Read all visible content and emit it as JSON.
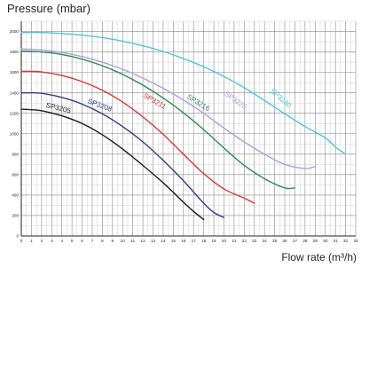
{
  "chart_data": {
    "type": "line",
    "ylabel": "Pressure (mbar)",
    "xlabel": "Flow rate (m³/h)",
    "xlim": [
      0,
      33
    ],
    "ylim": [
      0,
      2100
    ],
    "xticks": [
      0,
      1,
      2,
      3,
      4,
      5,
      6,
      7,
      8,
      9,
      10,
      11,
      12,
      13,
      14,
      15,
      16,
      17,
      18,
      19,
      20,
      21,
      22,
      23,
      24,
      25,
      26,
      27,
      28,
      29,
      30,
      31,
      32,
      33
    ],
    "yticks": [
      0,
      200,
      400,
      600,
      800,
      1000,
      1200,
      1400,
      1600,
      1800,
      2000
    ],
    "grid": true,
    "series": [
      {
        "name": "SP3205",
        "color": "#1a1a1a",
        "x": [
          0,
          1,
          2,
          4,
          6,
          8,
          10,
          12,
          14,
          16,
          17,
          18
        ],
        "y": [
          1240,
          1235,
          1225,
          1175,
          1100,
          990,
          850,
          690,
          520,
          330,
          240,
          160
        ]
      },
      {
        "name": "SP3208",
        "color": "#2f3d85",
        "x": [
          0,
          1,
          2,
          4,
          6,
          8,
          10,
          12,
          14,
          16,
          18,
          19,
          20
        ],
        "y": [
          1400,
          1400,
          1395,
          1355,
          1290,
          1195,
          1070,
          920,
          740,
          540,
          320,
          230,
          180
        ]
      },
      {
        "name": "SP3211",
        "color": "#d23a35",
        "x": [
          0,
          1,
          2,
          4,
          6,
          8,
          10,
          12,
          14,
          16,
          18,
          20,
          22,
          23
        ],
        "y": [
          1610,
          1610,
          1605,
          1570,
          1510,
          1425,
          1310,
          1165,
          995,
          800,
          610,
          460,
          370,
          320
        ]
      },
      {
        "name": "SP3216",
        "color": "#2e8b57",
        "x": [
          0,
          2,
          4,
          6,
          8,
          10,
          12,
          14,
          16,
          18,
          20,
          22,
          24,
          26,
          27
        ],
        "y": [
          1810,
          1800,
          1775,
          1730,
          1665,
          1580,
          1475,
          1350,
          1205,
          1040,
          860,
          690,
          560,
          470,
          470
        ]
      },
      {
        "name": "SP3220",
        "color": "#b39ddb",
        "x": [
          0,
          2,
          4,
          6,
          8,
          10,
          12,
          14,
          16,
          18,
          20,
          22,
          24,
          26,
          28,
          29
        ],
        "y": [
          1830,
          1820,
          1795,
          1755,
          1700,
          1630,
          1545,
          1445,
          1330,
          1200,
          1055,
          920,
          800,
          700,
          660,
          680
        ]
      },
      {
        "name": "SP3230",
        "color": "#4ec3e0",
        "x": [
          0,
          2,
          4,
          6,
          8,
          10,
          12,
          14,
          16,
          18,
          20,
          22,
          24,
          26,
          28,
          30,
          31,
          32
        ],
        "y": [
          1990,
          1990,
          1980,
          1965,
          1940,
          1905,
          1860,
          1805,
          1735,
          1655,
          1560,
          1450,
          1325,
          1195,
          1070,
          960,
          870,
          800
        ]
      }
    ],
    "series_labels": [
      {
        "text": "SP3205",
        "color": "#1a1a1a",
        "x": 2.4,
        "y": 1260,
        "angle": 14
      },
      {
        "text": "SP3208",
        "color": "#2f3d85",
        "x": 6.5,
        "y": 1300,
        "angle": 20
      },
      {
        "text": "SP3211",
        "color": "#d23a35",
        "x": 12.0,
        "y": 1360,
        "angle": 30
      },
      {
        "text": "SP3216",
        "color": "#2e8b57",
        "x": 16.3,
        "y": 1350,
        "angle": 32
      },
      {
        "text": "SP3220",
        "color": "#b39ddb",
        "x": 20.0,
        "y": 1380,
        "angle": 35
      },
      {
        "text": "SP3230",
        "color": "#4ec3e0",
        "x": 24.5,
        "y": 1410,
        "angle": 40
      }
    ]
  }
}
